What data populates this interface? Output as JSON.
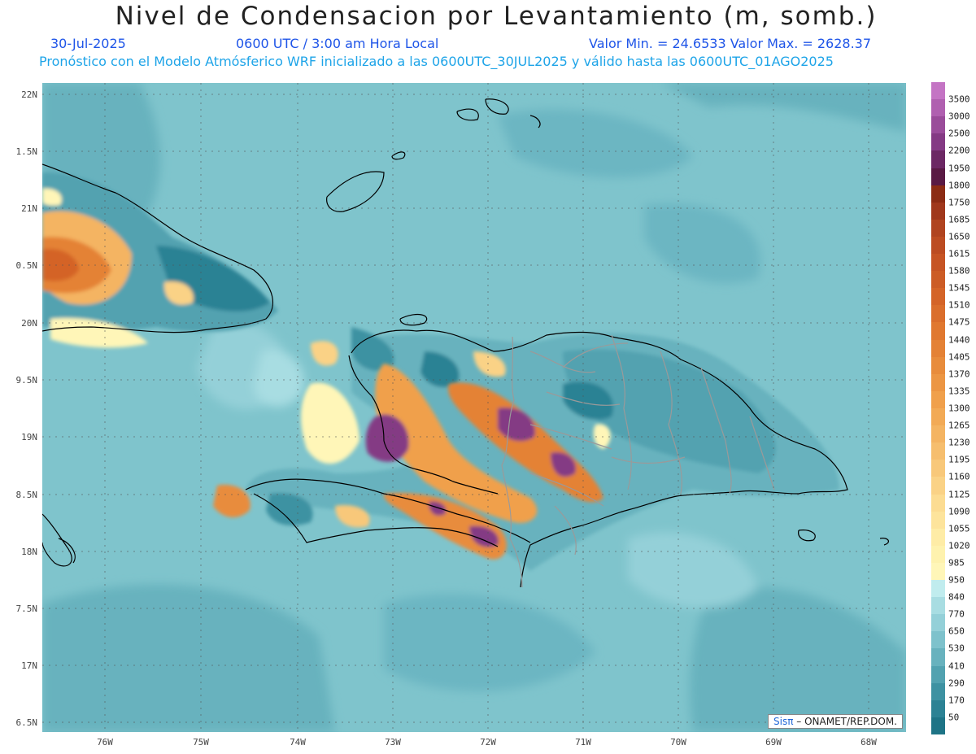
{
  "header": {
    "title": "Nivel de Condensacion por Levantamiento (m, somb.)",
    "date": "30-Jul-2025",
    "time": "0600 UTC / 3:00 am Hora Local",
    "minmax": "Valor Min. = 24.6533  Valor Max. = 2628.37",
    "forecast": "Pronóstico con el Modelo Atmósferico WRF inicializado a las 0600UTC_30JUL2025 y válido hasta las  0600UTC_01AGO2025"
  },
  "map": {
    "lat_labels": [
      "22N",
      "1.5N",
      "21N",
      "0.5N",
      "20N",
      "9.5N",
      "19N",
      "8.5N",
      "18N",
      "7.5N",
      "17N",
      "6.5N"
    ],
    "lon_labels": [
      "76W",
      "75W",
      "74W",
      "73W",
      "72W",
      "71W",
      "70W",
      "69W",
      "68W"
    ],
    "credit_sis": "Sisπ",
    "credit_text": " – ONAMET/REP.DOM."
  },
  "colorbar": {
    "labels": [
      "3500",
      "3000",
      "2500",
      "2200",
      "1950",
      "1800",
      "1750",
      "1685",
      "1650",
      "1615",
      "1580",
      "1545",
      "1510",
      "1475",
      "1440",
      "1405",
      "1370",
      "1335",
      "1300",
      "1265",
      "1230",
      "1195",
      "1160",
      "1125",
      "1090",
      "1055",
      "1020",
      "985",
      "950",
      "840",
      "770",
      "650",
      "530",
      "410",
      "290",
      "170",
      "50"
    ],
    "colors": [
      "#c474c4",
      "#b060b0",
      "#9a4c9a",
      "#843a84",
      "#6c2864",
      "#5a1a44",
      "#8c2c14",
      "#a0381c",
      "#b04420",
      "#bc4c22",
      "#c65424",
      "#cc5c26",
      "#d46428",
      "#da6e2c",
      "#e07830",
      "#e48236",
      "#e88c3c",
      "#ec9644",
      "#f0a04c",
      "#f2aa56",
      "#f4b462",
      "#f6be6e",
      "#f8c87a",
      "#fad286",
      "#fcdc92",
      "#fde49c",
      "#feeca6",
      "#fef2ae",
      "#fff6b8",
      "#c0ecee",
      "#a8dde2",
      "#94d0d8",
      "#7ec2cc",
      "#68b2be",
      "#52a2b0",
      "#3e92a2",
      "#2c8294",
      "#1e7486"
    ]
  }
}
